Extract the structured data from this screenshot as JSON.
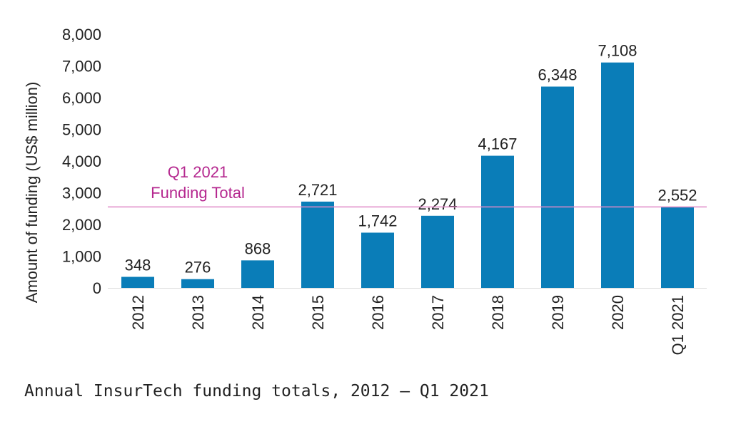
{
  "chart_data": {
    "type": "bar",
    "title": "Annual InsurTech funding totals, 2012 – Q1 2021",
    "ylabel": "Amount of funding (US$ million)",
    "xlabel": "",
    "ylim": [
      0,
      8000
    ],
    "yticks": [
      0,
      1000,
      2000,
      3000,
      4000,
      5000,
      6000,
      7000,
      8000
    ],
    "ytick_labels": [
      "0",
      "1,000",
      "2,000",
      "3,000",
      "4,000",
      "5,000",
      "6,000",
      "7,000",
      "8,000"
    ],
    "categories": [
      "2012",
      "2013",
      "2014",
      "2015",
      "2016",
      "2017",
      "2018",
      "2019",
      "2020",
      "Q1 2021"
    ],
    "values": [
      348,
      276,
      868,
      2721,
      1742,
      2274,
      4167,
      6348,
      7108,
      2552
    ],
    "value_labels": [
      "348",
      "276",
      "868",
      "2,721",
      "1,742",
      "2,274",
      "4,167",
      "6,348",
      "7,108",
      "2,552"
    ],
    "reference_line": {
      "value": 2552,
      "label_line1": "Q1 2021",
      "label_line2": "Funding Total",
      "color": "#e08ac8"
    },
    "bar_color": "#0a7db8",
    "grid": false
  }
}
